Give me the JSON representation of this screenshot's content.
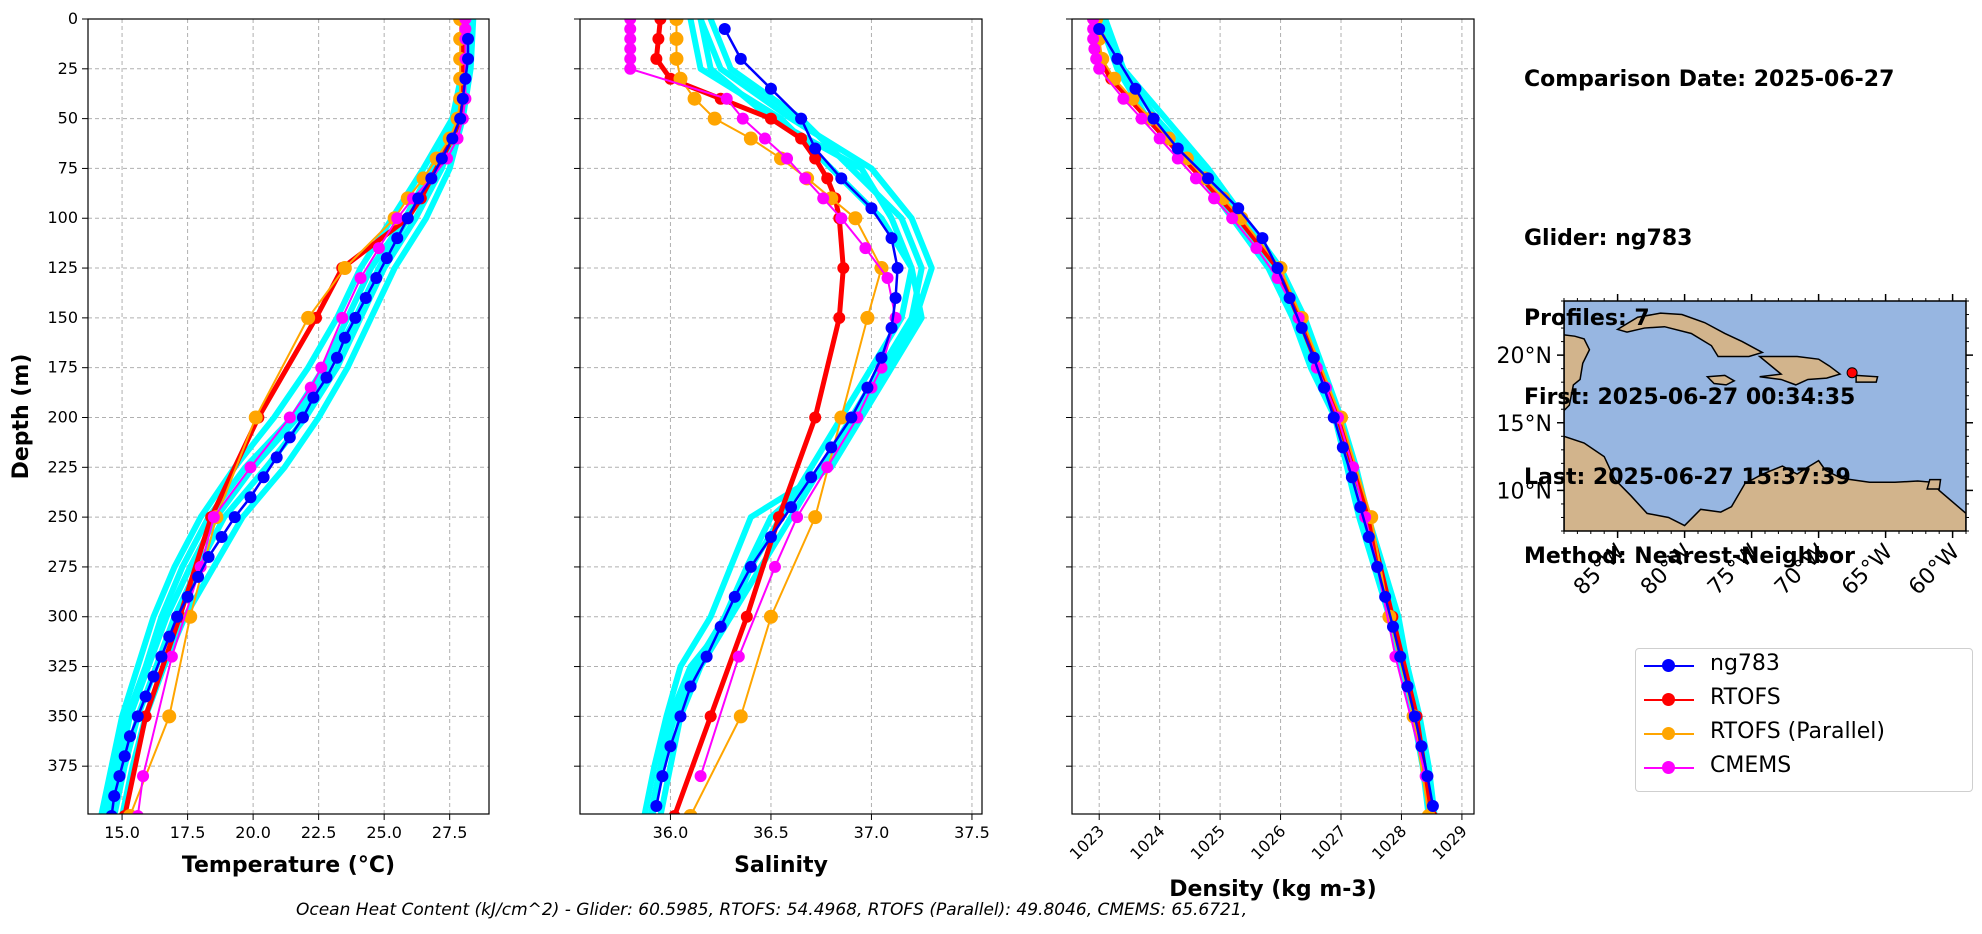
{
  "info": {
    "comparison_date": "Comparison Date: 2025-06-27",
    "glider": "Glider: ng783",
    "profiles": "Profiles: 7",
    "first": "First: 2025-06-27 00:34:35",
    "last": "Last: 2025-06-27 15:37:39",
    "method": "Method: Nearest-Neighbor"
  },
  "footer": "Ocean Heat Content (kJ/cm^2) - Glider: 60.5985,  RTOFS: 54.4968,  RTOFS (Parallel): 49.8046,  CMEMS: 65.6721,",
  "colors": {
    "glider": "#0000ff",
    "rtofs": "#ff0000",
    "rtofs_parallel": "#ffa500",
    "cmems": "#ff00ff",
    "profiles": "#00ffff",
    "ocean": "#97b6e1",
    "land": "#d2b48c"
  },
  "legend": [
    {
      "label": "ng783",
      "color": "#0000ff"
    },
    {
      "label": "RTOFS",
      "color": "#ff0000"
    },
    {
      "label": "RTOFS (Parallel)",
      "color": "#ffa500"
    },
    {
      "label": "CMEMS",
      "color": "#ff00ff"
    }
  ],
  "map": {
    "lon_ticks": [
      "85°W",
      "80°W",
      "75°W",
      "70°W",
      "65°W",
      "60°W"
    ],
    "lat_ticks": [
      "20°N",
      "15°N",
      "10°N"
    ],
    "lon_range": [
      -89,
      -59
    ],
    "lat_range": [
      7,
      24
    ],
    "marker": {
      "lon": -67.5,
      "lat": 18.7
    }
  },
  "chart_data": [
    {
      "type": "line",
      "xlabel": "Temperature (°C)",
      "ylabel": "Depth (m)",
      "xlim": [
        13.7,
        29.0
      ],
      "ylim": [
        399,
        0
      ],
      "xticks": [
        "15.0",
        "17.5",
        "20.0",
        "22.5",
        "25.0",
        "27.5"
      ],
      "xtick_values": [
        15.0,
        17.5,
        20.0,
        22.5,
        25.0,
        27.5
      ],
      "yticks": [
        "0",
        "25",
        "50",
        "75",
        "100",
        "125",
        "150",
        "175",
        "200",
        "225",
        "250",
        "275",
        "300",
        "325",
        "350",
        "375"
      ],
      "ytick_values": [
        0,
        25,
        50,
        75,
        100,
        125,
        150,
        175,
        200,
        225,
        250,
        275,
        300,
        325,
        350,
        375
      ],
      "grid": true,
      "profiles_depth": [
        0,
        25,
        50,
        75,
        100,
        125,
        150,
        175,
        200,
        225,
        250,
        275,
        300,
        325,
        350,
        375,
        400
      ],
      "profiles": [
        [
          28.2,
          28.1,
          27.8,
          26.8,
          25.8,
          24.5,
          23.6,
          22.7,
          21.5,
          19.7,
          18.3,
          17.3,
          16.5,
          15.9,
          15.2,
          14.8,
          14.4
        ],
        [
          28.3,
          28.2,
          27.9,
          27.2,
          26.2,
          25.0,
          24.1,
          23.2,
          22.0,
          20.5,
          18.9,
          17.9,
          17.0,
          16.3,
          15.6,
          15.1,
          14.7
        ],
        [
          28.4,
          28.3,
          28.0,
          27.5,
          26.6,
          25.4,
          24.5,
          23.6,
          22.5,
          21.2,
          19.6,
          18.5,
          17.4,
          16.6,
          15.9,
          15.4,
          15.0
        ],
        [
          28.1,
          28.0,
          27.6,
          26.5,
          25.3,
          24.1,
          23.2,
          22.1,
          20.8,
          19.3,
          18.0,
          17.0,
          16.2,
          15.6,
          15.0,
          14.6,
          14.2
        ],
        [
          28.2,
          28.1,
          27.7,
          26.9,
          25.9,
          24.8,
          23.9,
          22.9,
          21.7,
          20.0,
          18.6,
          17.6,
          16.7,
          16.0,
          15.3,
          14.9,
          14.5
        ]
      ],
      "series": [
        {
          "name": "ng783",
          "color": "#0000ff",
          "lw": 2.5,
          "ms": 6,
          "depth": [
            10,
            20,
            30,
            40,
            50,
            60,
            70,
            80,
            90,
            100,
            110,
            120,
            130,
            140,
            150,
            160,
            170,
            180,
            190,
            200,
            210,
            220,
            230,
            240,
            250,
            260,
            270,
            280,
            290,
            300,
            310,
            320,
            330,
            340,
            350,
            360,
            370,
            380,
            390,
            400
          ],
          "values": [
            28.2,
            28.2,
            28.1,
            28.0,
            27.9,
            27.6,
            27.2,
            26.8,
            26.3,
            25.9,
            25.5,
            25.1,
            24.7,
            24.3,
            23.9,
            23.5,
            23.2,
            22.8,
            22.3,
            21.9,
            21.4,
            20.9,
            20.4,
            19.9,
            19.3,
            18.8,
            18.3,
            17.9,
            17.5,
            17.1,
            16.8,
            16.5,
            16.2,
            15.9,
            15.6,
            15.3,
            15.1,
            14.9,
            14.7,
            14.6
          ]
        },
        {
          "name": "RTOFS",
          "color": "#ff0000",
          "lw": 5,
          "ms": 6,
          "depth": [
            0,
            10,
            20,
            30,
            40,
            50,
            60,
            70,
            80,
            90,
            100,
            125,
            150,
            200,
            250,
            300,
            350,
            400
          ],
          "values": [
            28.0,
            28.0,
            28.0,
            28.0,
            28.0,
            27.9,
            27.6,
            27.2,
            26.8,
            26.4,
            25.9,
            23.4,
            22.4,
            20.2,
            18.4,
            17.2,
            15.9,
            15.1
          ]
        },
        {
          "name": "RTOFS (Parallel)",
          "color": "#ffa500",
          "lw": 2,
          "ms": 7,
          "depth": [
            0,
            10,
            20,
            30,
            40,
            50,
            60,
            70,
            80,
            90,
            100,
            125,
            150,
            200,
            250,
            300,
            350,
            400
          ],
          "values": [
            27.9,
            27.9,
            27.9,
            27.9,
            27.9,
            27.8,
            27.5,
            27.0,
            26.5,
            25.9,
            25.4,
            23.5,
            22.1,
            20.1,
            18.6,
            17.6,
            16.8,
            15.3
          ]
        },
        {
          "name": "CMEMS",
          "color": "#ff00ff",
          "lw": 2,
          "ms": 6,
          "depth": [
            0,
            5,
            10,
            20,
            30,
            40,
            50,
            60,
            70,
            80,
            90,
            100,
            115,
            130,
            150,
            175,
            185,
            200,
            225,
            250,
            275,
            320,
            380,
            400
          ],
          "values": [
            28.1,
            28.1,
            28.1,
            28.1,
            28.1,
            28.1,
            28.0,
            27.8,
            27.4,
            26.8,
            26.1,
            25.5,
            24.8,
            24.1,
            23.4,
            22.6,
            22.2,
            21.4,
            19.9,
            18.5,
            18.0,
            16.9,
            15.8,
            15.6
          ]
        }
      ]
    },
    {
      "type": "line",
      "xlabel": "Salinity",
      "ylabel": "",
      "xlim": [
        35.55,
        37.55
      ],
      "ylim": [
        399,
        0
      ],
      "xticks": [
        "36.0",
        "36.5",
        "37.0",
        "37.5"
      ],
      "xtick_values": [
        36.0,
        36.5,
        37.0,
        37.5
      ],
      "grid": true,
      "profiles_depth": [
        0,
        25,
        50,
        75,
        100,
        125,
        150,
        175,
        200,
        225,
        250,
        275,
        300,
        325,
        350,
        375,
        400
      ],
      "profiles": [
        [
          36.15,
          36.2,
          36.5,
          36.95,
          37.1,
          37.2,
          37.15,
          37.0,
          36.85,
          36.7,
          36.55,
          36.4,
          36.3,
          36.1,
          36.0,
          35.95,
          35.9
        ],
        [
          36.2,
          36.3,
          36.65,
          36.9,
          37.15,
          37.25,
          37.2,
          37.05,
          36.9,
          36.75,
          36.6,
          36.45,
          36.3,
          36.15,
          36.05,
          36.0,
          35.95
        ],
        [
          36.1,
          36.15,
          36.55,
          36.8,
          37.05,
          37.2,
          37.25,
          37.1,
          36.95,
          36.8,
          36.4,
          36.3,
          36.2,
          36.05,
          35.98,
          35.92,
          35.87
        ],
        [
          36.15,
          36.25,
          36.6,
          37.0,
          37.2,
          37.3,
          37.22,
          37.08,
          36.92,
          36.78,
          36.5,
          36.38,
          36.27,
          36.12,
          36.02,
          35.96,
          35.91
        ]
      ],
      "series": [
        {
          "name": "ng783",
          "color": "#0000ff",
          "lw": 2.5,
          "ms": 6,
          "depth": [
            5,
            20,
            35,
            50,
            65,
            80,
            95,
            110,
            125,
            140,
            155,
            170,
            185,
            200,
            215,
            230,
            245,
            260,
            275,
            290,
            305,
            320,
            335,
            350,
            365,
            380,
            395
          ],
          "values": [
            36.27,
            36.35,
            36.5,
            36.65,
            36.72,
            36.85,
            37.0,
            37.1,
            37.13,
            37.12,
            37.1,
            37.05,
            36.98,
            36.9,
            36.8,
            36.7,
            36.6,
            36.5,
            36.4,
            36.32,
            36.25,
            36.18,
            36.1,
            36.05,
            36.0,
            35.96,
            35.93
          ]
        },
        {
          "name": "RTOFS",
          "color": "#ff0000",
          "lw": 5,
          "ms": 6,
          "depth": [
            0,
            10,
            20,
            30,
            40,
            50,
            60,
            70,
            80,
            90,
            100,
            125,
            150,
            200,
            250,
            300,
            350,
            400
          ],
          "values": [
            35.95,
            35.94,
            35.93,
            36.0,
            36.25,
            36.5,
            36.65,
            36.72,
            36.78,
            36.82,
            36.84,
            36.86,
            36.84,
            36.72,
            36.54,
            36.38,
            36.2,
            36.02
          ]
        },
        {
          "name": "RTOFS (Parallel)",
          "color": "#ffa500",
          "lw": 2,
          "ms": 7,
          "depth": [
            0,
            10,
            20,
            30,
            40,
            50,
            60,
            70,
            80,
            90,
            100,
            125,
            150,
            200,
            250,
            300,
            350,
            400
          ],
          "values": [
            36.03,
            36.03,
            36.03,
            36.05,
            36.12,
            36.22,
            36.4,
            36.55,
            36.68,
            36.8,
            36.92,
            37.05,
            36.98,
            36.85,
            36.72,
            36.5,
            36.35,
            36.1
          ]
        },
        {
          "name": "CMEMS",
          "color": "#ff00ff",
          "lw": 2,
          "ms": 6,
          "depth": [
            0,
            5,
            10,
            15,
            20,
            25,
            40,
            50,
            60,
            70,
            80,
            90,
            100,
            115,
            130,
            150,
            175,
            185,
            200,
            225,
            250,
            275,
            320,
            380
          ],
          "values": [
            35.8,
            35.8,
            35.8,
            35.8,
            35.8,
            35.8,
            36.28,
            36.36,
            36.47,
            36.58,
            36.67,
            36.76,
            36.85,
            36.97,
            37.08,
            37.12,
            37.05,
            37.0,
            36.93,
            36.78,
            36.63,
            36.52,
            36.34,
            36.15
          ]
        }
      ]
    },
    {
      "type": "line",
      "xlabel": "Density (kg m-3)",
      "ylabel": "",
      "xlim": [
        1022.55,
        1029.2
      ],
      "ylim": [
        399,
        0
      ],
      "xticks": [
        "1023",
        "1024",
        "1025",
        "1026",
        "1027",
        "1028",
        "1029"
      ],
      "xtick_values": [
        1023,
        1024,
        1025,
        1026,
        1027,
        1028,
        1029
      ],
      "grid": true,
      "profiles_depth": [
        0,
        25,
        50,
        75,
        100,
        125,
        150,
        175,
        200,
        225,
        250,
        275,
        300,
        325,
        350,
        375,
        400
      ],
      "profiles": [
        [
          1023.0,
          1023.3,
          1023.8,
          1024.6,
          1025.2,
          1025.8,
          1026.2,
          1026.5,
          1026.9,
          1027.1,
          1027.3,
          1027.55,
          1027.8,
          1028.0,
          1028.2,
          1028.35,
          1028.45
        ],
        [
          1023.1,
          1023.4,
          1024.1,
          1024.8,
          1025.4,
          1026.0,
          1026.4,
          1026.7,
          1027.0,
          1027.25,
          1027.45,
          1027.7,
          1027.95,
          1028.1,
          1028.3,
          1028.45,
          1028.55
        ],
        [
          1023.05,
          1023.35,
          1023.95,
          1024.7,
          1025.3,
          1025.9,
          1026.3,
          1026.6,
          1026.95,
          1027.2,
          1027.4,
          1027.6,
          1027.85,
          1028.05,
          1028.25,
          1028.4,
          1028.5
        ]
      ],
      "series": [
        {
          "name": "ng783",
          "color": "#0000ff",
          "lw": 2.5,
          "ms": 6,
          "depth": [
            5,
            20,
            35,
            50,
            65,
            80,
            95,
            110,
            125,
            140,
            155,
            170,
            185,
            200,
            215,
            230,
            245,
            260,
            275,
            290,
            305,
            320,
            335,
            350,
            365,
            380,
            395
          ],
          "values": [
            1023.0,
            1023.3,
            1023.6,
            1023.9,
            1024.3,
            1024.8,
            1025.3,
            1025.7,
            1025.95,
            1026.15,
            1026.35,
            1026.55,
            1026.72,
            1026.88,
            1027.03,
            1027.18,
            1027.32,
            1027.46,
            1027.6,
            1027.73,
            1027.86,
            1027.98,
            1028.1,
            1028.22,
            1028.33,
            1028.43,
            1028.52
          ]
        },
        {
          "name": "RTOFS",
          "color": "#ff0000",
          "lw": 5,
          "ms": 6,
          "depth": [
            0,
            10,
            20,
            30,
            40,
            50,
            60,
            70,
            80,
            90,
            100,
            125,
            150,
            200,
            250,
            300,
            350,
            400
          ],
          "values": [
            1022.9,
            1022.95,
            1023.0,
            1023.2,
            1023.5,
            1023.8,
            1024.1,
            1024.4,
            1024.7,
            1025.0,
            1025.3,
            1025.95,
            1026.3,
            1026.95,
            1027.45,
            1027.85,
            1028.25,
            1028.5
          ]
        },
        {
          "name": "RTOFS (Parallel)",
          "color": "#ffa500",
          "lw": 2,
          "ms": 7,
          "depth": [
            0,
            10,
            20,
            30,
            40,
            50,
            60,
            70,
            80,
            90,
            100,
            125,
            150,
            200,
            250,
            300,
            350,
            400
          ],
          "values": [
            1022.95,
            1023.0,
            1023.05,
            1023.25,
            1023.55,
            1023.85,
            1024.15,
            1024.45,
            1024.75,
            1025.05,
            1025.35,
            1026.0,
            1026.35,
            1027.0,
            1027.5,
            1027.8,
            1028.2,
            1028.45
          ]
        },
        {
          "name": "CMEMS",
          "color": "#ff00ff",
          "lw": 2,
          "ms": 6,
          "depth": [
            0,
            5,
            10,
            15,
            20,
            25,
            40,
            50,
            60,
            70,
            80,
            90,
            100,
            115,
            130,
            150,
            175,
            185,
            200,
            225,
            250,
            275,
            320,
            380
          ],
          "values": [
            1022.9,
            1022.9,
            1022.9,
            1022.92,
            1022.95,
            1023.0,
            1023.4,
            1023.7,
            1024.0,
            1024.3,
            1024.6,
            1024.9,
            1025.2,
            1025.6,
            1025.95,
            1026.3,
            1026.6,
            1026.75,
            1026.95,
            1027.2,
            1027.4,
            1027.6,
            1027.9,
            1028.4
          ]
        }
      ]
    }
  ]
}
